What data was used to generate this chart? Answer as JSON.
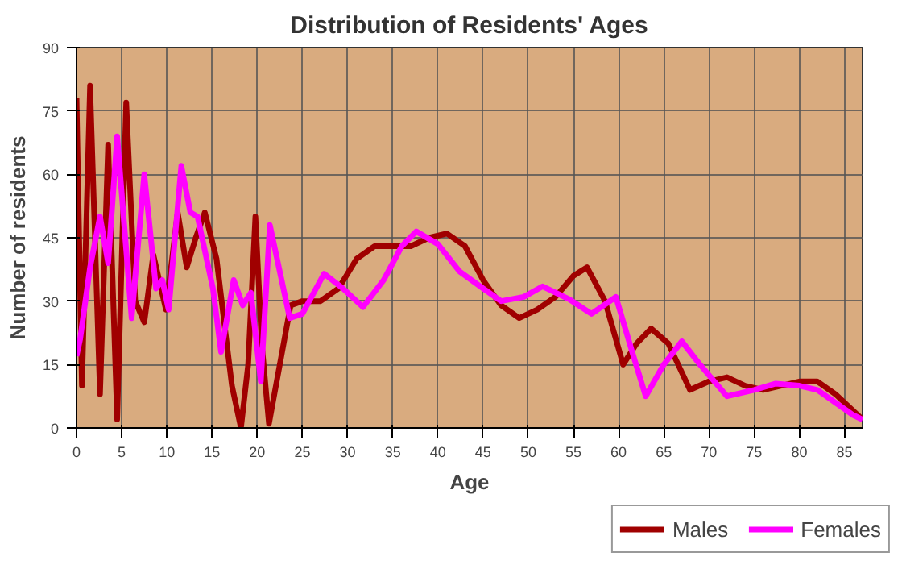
{
  "chart_data": {
    "type": "line",
    "title": "Distribution of Residents' Ages",
    "xlabel": "Age",
    "ylabel": "Number of residents",
    "xlim": [
      0,
      87
    ],
    "xticks": [
      0,
      5,
      10,
      15,
      20,
      25,
      30,
      35,
      40,
      45,
      50,
      55,
      60,
      65,
      70,
      75,
      80,
      85
    ],
    "ylim": [
      0,
      90
    ],
    "yticks": [
      0,
      15,
      30,
      45,
      60,
      75,
      90
    ],
    "grid": true,
    "legend": "bottom right",
    "line_style": "solid",
    "marker": "none",
    "series": [
      {
        "name": "Males",
        "color": "#a00000",
        "x": [
          0,
          0.6,
          1.5,
          2.6,
          3.5,
          4.5,
          5.5,
          6.5,
          7.5,
          8.5,
          9.9,
          11.2,
          12.2,
          13.2,
          14.2,
          15.5,
          17.2,
          18.2,
          19,
          19.8,
          20.5,
          21.3,
          22.5,
          23.7,
          25,
          27,
          29,
          31,
          33,
          35,
          37,
          39,
          41,
          43,
          45,
          47,
          49,
          51,
          53,
          55,
          56.5,
          58.5,
          60.5,
          62,
          63.6,
          65.5,
          67.9,
          70,
          72,
          74,
          76,
          78,
          80,
          82,
          84,
          86,
          87
        ],
        "values": [
          78,
          10,
          81,
          8,
          67,
          2,
          77,
          30,
          25,
          41,
          28,
          51,
          38,
          45,
          51,
          40,
          10,
          0,
          15,
          50,
          20,
          1,
          15,
          29,
          30,
          30,
          33,
          40,
          43,
          43,
          43,
          45,
          46,
          43,
          35,
          29,
          26,
          28,
          31,
          36,
          38,
          30,
          15,
          20,
          23.5,
          20,
          9,
          11,
          12,
          10,
          9,
          10,
          11,
          11,
          8,
          4,
          2
        ]
      },
      {
        "name": "Females",
        "color": "#ff00ff",
        "x": [
          0,
          0.4,
          1.5,
          2.6,
          3.5,
          4.5,
          6.1,
          7.5,
          8.8,
          9.5,
          10.2,
          11.6,
          12.6,
          13.4,
          15.1,
          16,
          17.4,
          18.4,
          19.3,
          20.4,
          21.4,
          23.6,
          25,
          27.4,
          29.5,
          31.7,
          34,
          36,
          37.6,
          40,
          42.4,
          45,
          47,
          49.5,
          51.6,
          54.5,
          57,
          59.7,
          61.5,
          63,
          65,
          67,
          69,
          72,
          75,
          77.4,
          80,
          82,
          84,
          86,
          87
        ],
        "values": [
          17,
          21,
          38,
          50,
          39,
          69,
          26,
          60,
          33,
          35,
          28,
          62,
          51,
          50,
          33,
          18,
          35,
          29,
          32,
          11,
          48,
          26,
          27,
          36.5,
          33,
          28.6,
          35,
          43,
          46.5,
          43.5,
          37,
          33,
          30,
          31,
          33.5,
          30.5,
          27,
          31,
          18,
          7.5,
          15,
          20.5,
          15,
          7.5,
          9,
          10.5,
          10,
          9,
          6,
          3,
          2
        ]
      }
    ]
  }
}
